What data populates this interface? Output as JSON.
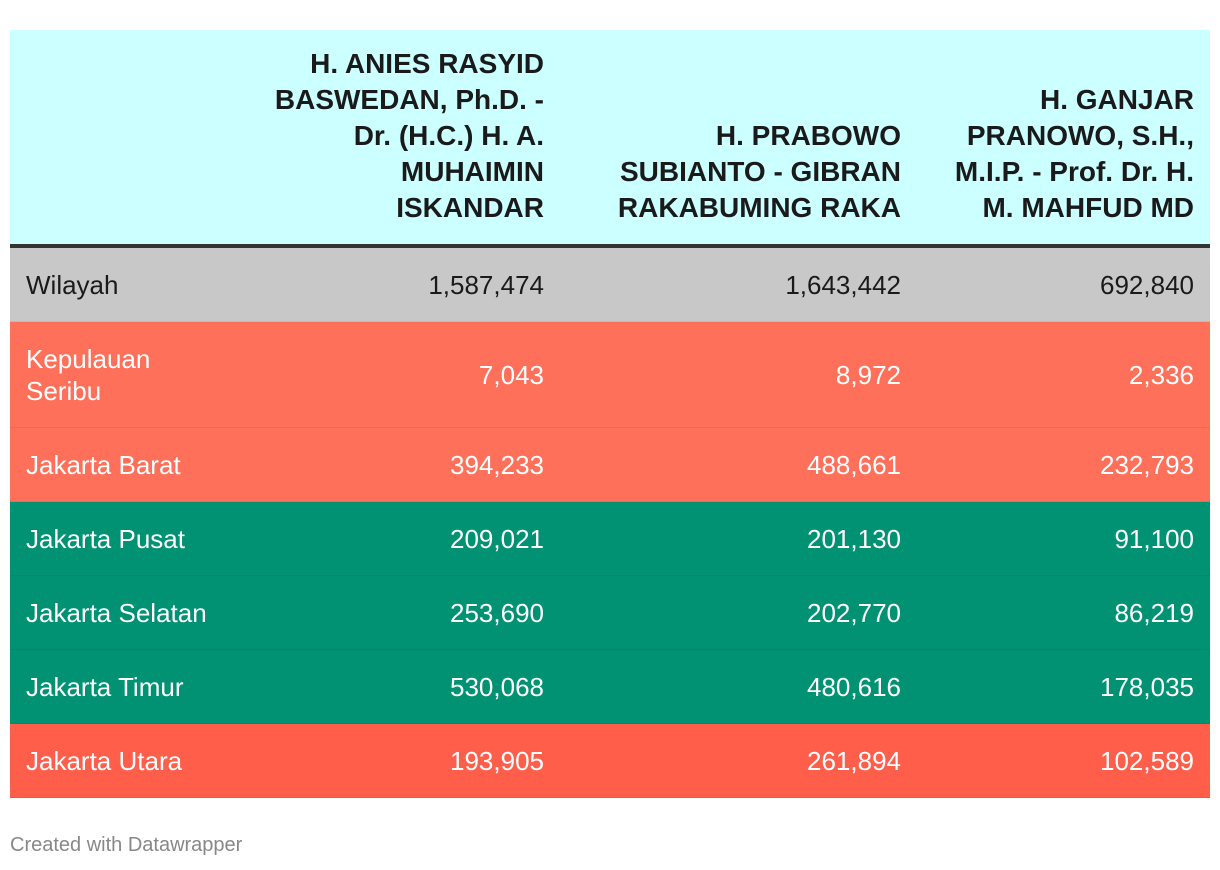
{
  "chart_data": {
    "type": "table",
    "columns": [
      "",
      "H. ANIES RASYID BASWEDAN, Ph.D. - Dr. (H.C.) H. A. MUHAIMIN ISKANDAR",
      "H. PRABOWO SUBIANTO - GIBRAN RAKABUMING RAKA",
      "H. GANJAR PRANOWO, S.H., M.I.P. - Prof. Dr. H. M. MAHFUD MD"
    ],
    "rows": [
      {
        "name": "Wilayah",
        "values": [
          "1,587,474",
          "1,643,442",
          "692,840"
        ],
        "bg": "#c8c8c8",
        "fg": "#1a1a1a"
      },
      {
        "name": "Kepulauan Seribu",
        "values": [
          "7,043",
          "8,972",
          "2,336"
        ],
        "bg": "#fe705a",
        "fg": "#ffffff"
      },
      {
        "name": "Jakarta Barat",
        "values": [
          "394,233",
          "488,661",
          "232,793"
        ],
        "bg": "#fe705a",
        "fg": "#ffffff"
      },
      {
        "name": "Jakarta Pusat",
        "values": [
          "209,021",
          "201,130",
          "91,100"
        ],
        "bg": "#009273",
        "fg": "#ffffff"
      },
      {
        "name": "Jakarta Selatan",
        "values": [
          "253,690",
          "202,770",
          "86,219"
        ],
        "bg": "#009273",
        "fg": "#ffffff"
      },
      {
        "name": "Jakarta Timur",
        "values": [
          "530,068",
          "480,616",
          "178,035"
        ],
        "bg": "#009273",
        "fg": "#ffffff"
      },
      {
        "name": "Jakarta Utara",
        "values": [
          "193,905",
          "261,894",
          "102,589"
        ],
        "bg": "#ff5e4b",
        "fg": "#ffffff"
      }
    ]
  },
  "footer": {
    "credit": "Created with Datawrapper"
  },
  "colors": {
    "header_bg": "#ccffff",
    "header_border": "#333333",
    "footer_text": "#888888"
  }
}
